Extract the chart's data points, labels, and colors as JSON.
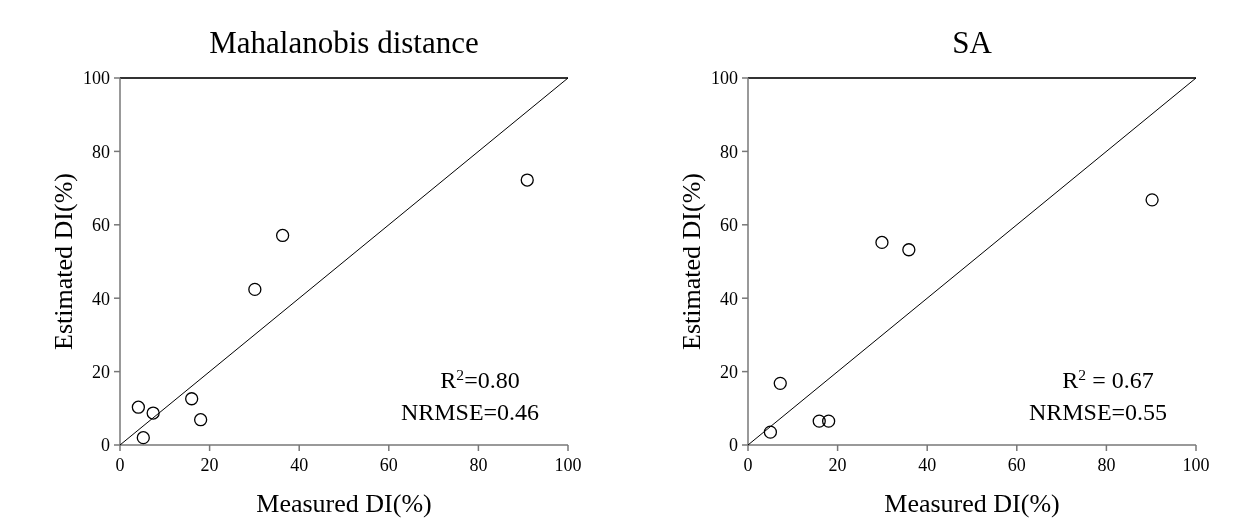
{
  "chart_data": [
    {
      "type": "scatter",
      "title": "Mahalanobis distance",
      "xlabel": "Measured DI(%)",
      "ylabel": "Estimated DI(%)",
      "xlim": [
        0,
        100
      ],
      "ylim": [
        0,
        100
      ],
      "xticks": [
        0,
        20,
        40,
        60,
        80,
        100
      ],
      "yticks": [
        0,
        20,
        40,
        60,
        80,
        100
      ],
      "grid": false,
      "series": [
        {
          "marker": "circle",
          "color": "#000000",
          "x": [
            4.1,
            7.4,
            5.2,
            16,
            18,
            30.1,
            36.3,
            90.9
          ],
          "values": [
            10.3,
            8.7,
            2.0,
            12.6,
            6.9,
            42.4,
            57.1,
            72.2
          ]
        },
        {
          "type": "line",
          "color": "#000000",
          "x": [
            0,
            100
          ],
          "values": [
            0,
            100
          ]
        }
      ],
      "annotations": [
        "R$^{2}$=0.80",
        "NRMSE=0.46"
      ]
    },
    {
      "type": "scatter",
      "title": "SA",
      "xlabel": "Measured DI(%)",
      "ylabel": "Estimated DI(%)",
      "xlim": [
        0,
        100
      ],
      "ylim": [
        0,
        100
      ],
      "xticks": [
        0,
        20,
        40,
        60,
        80,
        100
      ],
      "yticks": [
        0,
        20,
        40,
        60,
        80,
        100
      ],
      "grid": false,
      "series": [
        {
          "marker": "circle",
          "color": "#000000",
          "x": [
            5.0,
            7.2,
            15.9,
            18.0,
            29.9,
            35.9,
            90.2
          ],
          "values": [
            3.5,
            16.8,
            6.5,
            6.5,
            55.2,
            53.2,
            66.8
          ]
        },
        {
          "type": "line",
          "color": "#000000",
          "x": [
            0,
            100
          ],
          "values": [
            0,
            100
          ]
        }
      ],
      "annotations": [
        "R$^{2}$ = 0.67",
        "NRMSE=0.55"
      ]
    }
  ]
}
